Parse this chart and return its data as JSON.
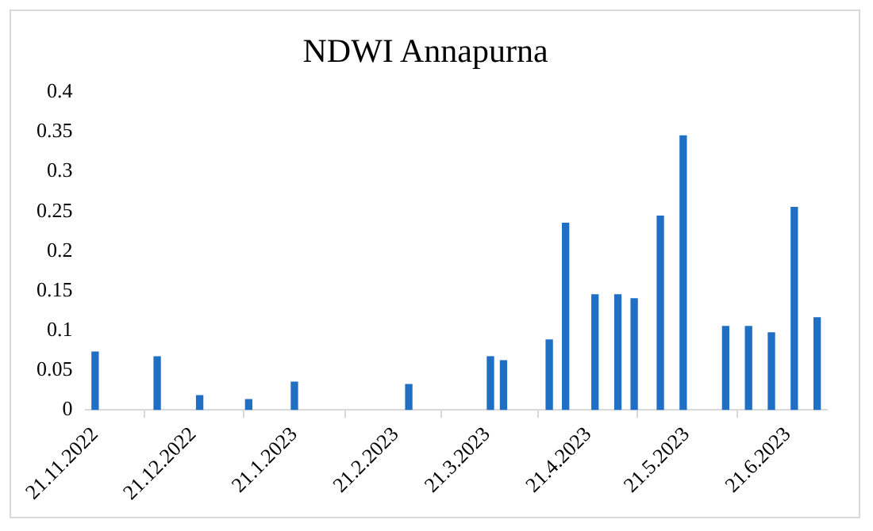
{
  "chart_data": {
    "type": "bar",
    "title": "NDWI Annapurna",
    "x": [
      "2022-11-21",
      "2022-12-10",
      "2022-12-23",
      "2023-01-07",
      "2023-01-21",
      "2023-02-25",
      "2023-03-22",
      "2023-03-26",
      "2023-04-09",
      "2023-04-14",
      "2023-04-23",
      "2023-04-30",
      "2023-05-05",
      "2023-05-13",
      "2023-05-20",
      "2023-06-02",
      "2023-06-09",
      "2023-06-16",
      "2023-06-23",
      "2023-06-30"
    ],
    "values": [
      0.073,
      0.067,
      0.018,
      0.013,
      0.035,
      0.032,
      0.067,
      0.062,
      0.088,
      0.235,
      0.145,
      0.145,
      0.14,
      0.244,
      0.345,
      0.105,
      0.105,
      0.097,
      0.255,
      0.116
    ],
    "color": "#1f6fc5",
    "xlim": [
      "2022-11-18",
      "2023-07-03"
    ],
    "xticks": [
      {
        "value": "2022-11-21",
        "label": "21.11.2022"
      },
      {
        "value": "2022-12-21",
        "label": "21.12.2022"
      },
      {
        "value": "2023-01-21",
        "label": "21.1.2023"
      },
      {
        "value": "2023-02-21",
        "label": "21.2.2023"
      },
      {
        "value": "2023-03-21",
        "label": "21.3.2023"
      },
      {
        "value": "2023-04-21",
        "label": "21.4.2023"
      },
      {
        "value": "2023-05-21",
        "label": "21.5.2023"
      },
      {
        "value": "2023-06-21",
        "label": "21.6.2023"
      }
    ],
    "ylim": [
      0,
      0.4
    ],
    "yticks": [
      0,
      0.05,
      0.1,
      0.15,
      0.2,
      0.25,
      0.3,
      0.35,
      0.4
    ],
    "grid": false,
    "legend": false
  }
}
